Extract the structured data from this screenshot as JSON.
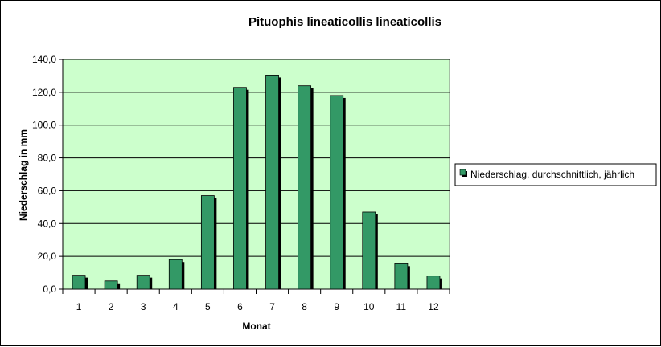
{
  "chart_data": {
    "type": "bar",
    "title": "Pituophis lineaticollis  lineaticollis",
    "xlabel": "Monat",
    "ylabel": "Niederschlag in mm",
    "categories": [
      "1",
      "2",
      "3",
      "4",
      "5",
      "6",
      "7",
      "8",
      "9",
      "10",
      "11",
      "12"
    ],
    "series": [
      {
        "name": "Niederschlag, durchschnittlich, jährlich",
        "values": [
          8.5,
          5.0,
          8.5,
          18.0,
          57.0,
          123.0,
          130.5,
          124.0,
          118.0,
          47.0,
          15.5,
          8.0
        ]
      }
    ],
    "ylim": [
      0,
      140
    ],
    "yticks": [
      "0,0",
      "20,0",
      "40,0",
      "60,0",
      "80,0",
      "100,0",
      "120,0",
      "140,0"
    ],
    "grid": true,
    "legend_position": "right",
    "colors": {
      "plot_background": "#ccffcc",
      "bar_fill": "#339966",
      "bar_shadow": "#000000",
      "gridline": "#000000"
    }
  }
}
